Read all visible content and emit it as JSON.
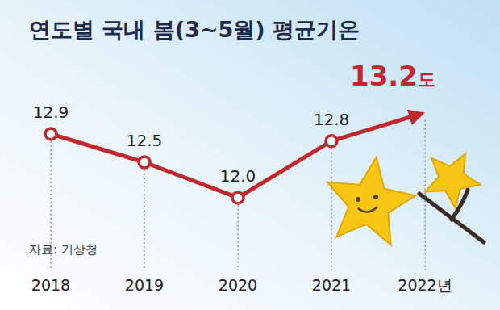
{
  "chart_data": {
    "type": "line",
    "title": "연도별 국내 봄(3~5월) 평균기온",
    "source": "자료: 기상청",
    "categories": [
      "2018",
      "2019",
      "2020",
      "2021",
      "2022년"
    ],
    "values": [
      12.9,
      12.5,
      12.0,
      12.8,
      13.2
    ],
    "value_labels": [
      "12.9",
      "12.5",
      "12.0",
      "12.8",
      "13.2도"
    ],
    "color": "#c1272d",
    "ylim": [
      11.6,
      13.4
    ],
    "data_labels": true,
    "tick_labels": "x",
    "marker": "circle",
    "grid": false
  }
}
